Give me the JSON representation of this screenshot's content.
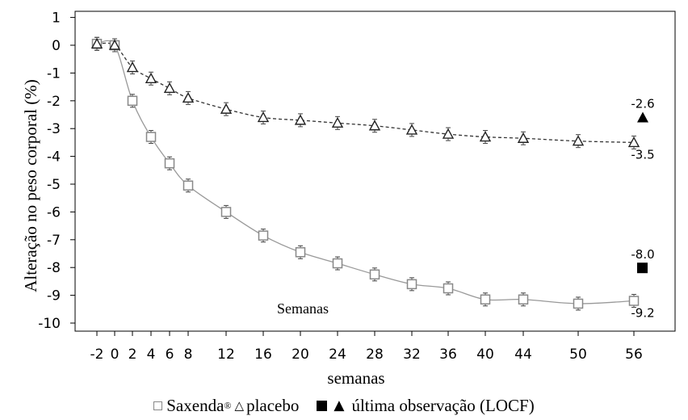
{
  "chart_data": {
    "type": "line",
    "ylabel": "Alteração no peso corporal (%)",
    "xlabel": "semanas",
    "inner_label": "Semanas",
    "ylim": [
      -10,
      1
    ],
    "yticks": [
      1,
      0,
      -1,
      -2,
      -3,
      -4,
      -5,
      -6,
      -7,
      -8,
      -9,
      -10
    ],
    "x_ticks": [
      -2,
      0,
      2,
      4,
      6,
      8,
      12,
      16,
      20,
      24,
      28,
      32,
      36,
      40,
      44,
      50,
      56
    ],
    "grid": false,
    "series": [
      {
        "name": "Saxenda®",
        "marker": "open-square",
        "line_style": "solid",
        "color": "#999999",
        "x": [
          -2,
          0,
          2,
          4,
          6,
          8,
          12,
          16,
          20,
          24,
          28,
          32,
          36,
          40,
          44,
          50,
          56
        ],
        "y": [
          0.05,
          0.0,
          -2.0,
          -3.3,
          -4.25,
          -5.05,
          -6.0,
          -6.85,
          -7.45,
          -7.85,
          -8.25,
          -8.6,
          -8.75,
          -9.15,
          -9.15,
          -9.3,
          -9.2
        ]
      },
      {
        "name": "placebo",
        "marker": "open-triangle",
        "line_style": "dashed",
        "color": "#333333",
        "x": [
          -2,
          0,
          2,
          4,
          6,
          8,
          12,
          16,
          20,
          24,
          28,
          32,
          36,
          40,
          44,
          50,
          56
        ],
        "y": [
          0.05,
          0.0,
          -0.8,
          -1.2,
          -1.55,
          -1.9,
          -2.3,
          -2.6,
          -2.7,
          -2.8,
          -2.9,
          -3.05,
          -3.2,
          -3.3,
          -3.35,
          -3.45,
          -3.5
        ]
      }
    ],
    "locf": [
      {
        "marker": "filled-triangle",
        "value": -2.6,
        "label": "-2.6"
      },
      {
        "marker": "filled-square",
        "value": -8.0,
        "label": "-8.0"
      }
    ],
    "end_labels": [
      {
        "label": "-3.5",
        "value": -3.5
      },
      {
        "label": "-9.2",
        "value": -9.2
      }
    ]
  },
  "legend": {
    "saxenda": "Saxenda",
    "saxenda_sup": "®",
    "placebo": "placebo",
    "locf": "última observação (LOCF)"
  }
}
